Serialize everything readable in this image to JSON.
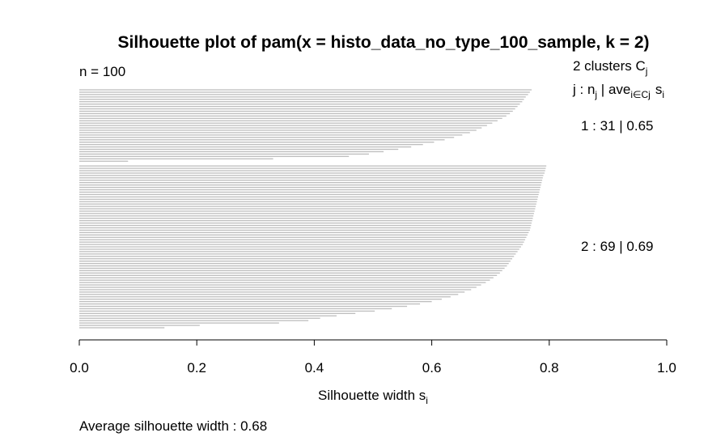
{
  "chart_data": {
    "type": "bar",
    "orientation": "horizontal",
    "title": "Silhouette plot of pam(x = histo_data_no_type_100_sample, k = 2)",
    "n_label": "n = 100",
    "clusters_header": {
      "count_text": "2  clusters  C",
      "count_sub": "j",
      "legend_j": "j :  n",
      "legend_j_sub": "j",
      "legend_sep": " | ave",
      "legend_ave_sub": "i∈Cj",
      "legend_s": "s",
      "legend_s_sub": "i"
    },
    "xlabel": "Silhouette width s",
    "xlabel_sub": "i",
    "xlim": [
      0,
      1
    ],
    "xticks": [
      "0.0",
      "0.2",
      "0.4",
      "0.6",
      "0.8",
      "1.0"
    ],
    "average_text": "Average silhouette width :  0.68",
    "clusters": [
      {
        "label": "1 :   31  |  0.65",
        "values": [
          0.77,
          0.767,
          0.764,
          0.76,
          0.757,
          0.754,
          0.75,
          0.746,
          0.742,
          0.738,
          0.733,
          0.727,
          0.72,
          0.712,
          0.703,
          0.694,
          0.685,
          0.676,
          0.665,
          0.652,
          0.638,
          0.622,
          0.604,
          0.585,
          0.565,
          0.543,
          0.518,
          0.493,
          0.459,
          0.33,
          0.083
        ]
      },
      {
        "label": "2 :   69  |  0.69",
        "values": [
          0.795,
          0.794,
          0.793,
          0.792,
          0.79,
          0.789,
          0.788,
          0.787,
          0.786,
          0.785,
          0.784,
          0.783,
          0.782,
          0.781,
          0.78,
          0.779,
          0.778,
          0.777,
          0.776,
          0.775,
          0.774,
          0.773,
          0.772,
          0.771,
          0.77,
          0.769,
          0.768,
          0.767,
          0.765,
          0.763,
          0.761,
          0.759,
          0.757,
          0.755,
          0.752,
          0.749,
          0.746,
          0.743,
          0.74,
          0.737,
          0.734,
          0.731,
          0.728,
          0.724,
          0.72,
          0.716,
          0.711,
          0.705,
          0.699,
          0.692,
          0.684,
          0.676,
          0.667,
          0.656,
          0.645,
          0.632,
          0.617,
          0.6,
          0.58,
          0.558,
          0.532,
          0.503,
          0.47,
          0.438,
          0.41,
          0.39,
          0.34,
          0.205,
          0.145
        ]
      }
    ]
  }
}
